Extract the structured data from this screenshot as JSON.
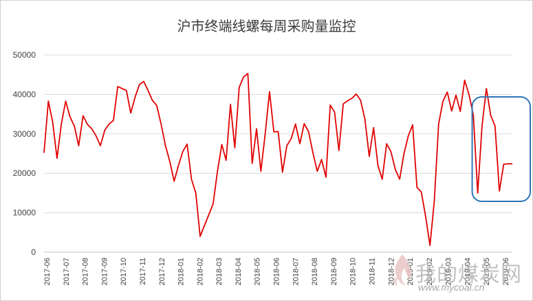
{
  "chart_data": {
    "type": "line",
    "title": "沪市终端线螺每周采购量监控",
    "ylim": [
      0,
      50000
    ],
    "yticks": [
      "0",
      "10000",
      "20000",
      "30000",
      "40000",
      "50000"
    ],
    "xticks": [
      "2017-06",
      "2017-07",
      "2017-08",
      "2017-09",
      "2017-10",
      "2017-11",
      "2017-12",
      "2018-01",
      "2018-02",
      "2018-03",
      "2018-04",
      "2018-05",
      "2018-06",
      "2018-07",
      "2018-08",
      "2018-09",
      "2018-10",
      "2018-11",
      "2018-12",
      "2019-01",
      "2019-02",
      "2019-03",
      "2019-04",
      "2019-05",
      "2019-06"
    ],
    "grid": true,
    "legend": "none",
    "series": [
      {
        "color": "#e00000",
        "values": [
          25200,
          38300,
          33000,
          23800,
          32500,
          38300,
          34300,
          32000,
          27000,
          34600,
          32400,
          31300,
          29500,
          27000,
          30900,
          32500,
          33400,
          42000,
          41500,
          41000,
          35300,
          39300,
          42500,
          43300,
          41000,
          38500,
          37200,
          32400,
          27000,
          23000,
          18000,
          22000,
          25500,
          27400,
          18500,
          15000,
          4000,
          6800,
          9500,
          12300,
          20500,
          27300,
          23300,
          37500,
          26500,
          41800,
          44400,
          45300,
          22500,
          31300,
          20500,
          30000,
          40700,
          30500,
          30600,
          20300,
          27000,
          28800,
          32500,
          27500,
          32600,
          30600,
          25300,
          20500,
          23500,
          19000,
          37300,
          35500,
          25800,
          37600,
          38400,
          39000,
          40100,
          38500,
          33700,
          24300,
          31600,
          22000,
          18500,
          27500,
          25500,
          21000,
          18500,
          25000,
          29500,
          32300,
          16400,
          15300,
          9000,
          1700,
          13000,
          32500,
          38300,
          40600,
          35800,
          39800,
          35700,
          43600,
          40000,
          34700,
          15000,
          32000,
          41500,
          34700,
          32000,
          15500,
          22300,
          22400,
          22400
        ]
      }
    ],
    "annotation": {
      "shape": "rounded-rectangle",
      "color": "#2e75b6",
      "x_from_index": 100,
      "x_to_index": 108
    }
  },
  "watermark": {
    "text": "我的煤炭网",
    "url": "www.mycoal.cn"
  }
}
